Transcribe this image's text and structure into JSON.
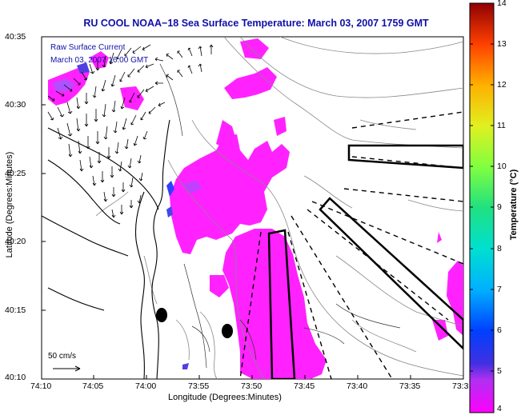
{
  "title": "RU COOL  NOAA−18  Sea Surface Temperature:  March 03, 2007 1759 GMT",
  "legend": {
    "line1": "Raw Surface Current",
    "line2": "March 03, 2007 16:00 GMT"
  },
  "scale": {
    "label": "50 cm/s"
  },
  "axes": {
    "xlabel": "Longitude (Degrees:Minutes)",
    "ylabel": "Latitude (Degrees:Minutes)",
    "xticks": [
      "74:10",
      "74:05",
      "74:00",
      "73:55",
      "73:50",
      "73:45",
      "73:40",
      "73:35",
      "73:3"
    ],
    "yticks": [
      "40:35",
      "40:30",
      "40:25",
      "40:20",
      "40:15",
      "40:10"
    ]
  },
  "colorbar": {
    "title": "Temperature (°C)",
    "ticks": [
      "14",
      "13",
      "12",
      "11",
      "10",
      "9",
      "8",
      "7",
      "6",
      "5",
      "4"
    ],
    "range": [
      4,
      14
    ]
  },
  "colors": {
    "title": "#1010a8",
    "sst_patch": "#ff20ff",
    "land": "#ffffff"
  }
}
